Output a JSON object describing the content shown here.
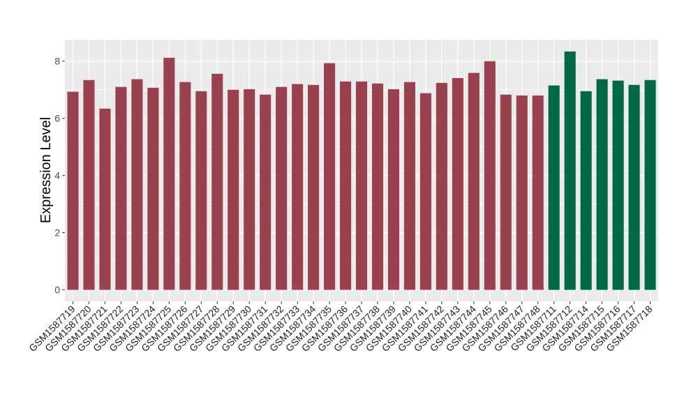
{
  "chart_data": {
    "type": "bar",
    "title": "",
    "xlabel": "",
    "ylabel": "Expression Level",
    "ylim": [
      -0.4,
      8.75
    ],
    "yticks": [
      0,
      2,
      4,
      6,
      8
    ],
    "grid": true,
    "categories": [
      "GSM1587719",
      "GSM1587720",
      "GSM1587721",
      "GSM1587722",
      "GSM1587723",
      "GSM1587724",
      "GSM1587725",
      "GSM1587726",
      "GSM1587727",
      "GSM1587728",
      "GSM1587729",
      "GSM1587730",
      "GSM1587731",
      "GSM1587732",
      "GSM1587733",
      "GSM1587734",
      "GSM1587735",
      "GSM1587736",
      "GSM1587737",
      "GSM1587738",
      "GSM1587739",
      "GSM1587740",
      "GSM1587741",
      "GSM1587742",
      "GSM1587743",
      "GSM1587744",
      "GSM1587745",
      "GSM1587746",
      "GSM1587747",
      "GSM1587748",
      "GSM1587711",
      "GSM1587712",
      "GSM1587714",
      "GSM1587715",
      "GSM1587716",
      "GSM1587717",
      "GSM1587718"
    ],
    "values": [
      6.93,
      7.34,
      6.34,
      7.1,
      7.37,
      7.07,
      8.12,
      7.27,
      6.95,
      7.56,
      7.0,
      7.02,
      6.83,
      7.1,
      7.2,
      7.17,
      7.93,
      7.29,
      7.29,
      7.22,
      7.02,
      7.27,
      6.88,
      7.24,
      7.41,
      7.59,
      8.0,
      6.83,
      6.8,
      6.8,
      7.15,
      8.34,
      6.95,
      7.37,
      7.32,
      7.17,
      7.34
    ],
    "groups": [
      0,
      0,
      0,
      0,
      0,
      0,
      0,
      0,
      0,
      0,
      0,
      0,
      0,
      0,
      0,
      0,
      0,
      0,
      0,
      0,
      0,
      0,
      0,
      0,
      0,
      0,
      0,
      0,
      0,
      0,
      1,
      1,
      1,
      1,
      1,
      1,
      1
    ],
    "colors": [
      "#9A4150",
      "#006845"
    ],
    "panel_color": "#EBEBEB"
  }
}
